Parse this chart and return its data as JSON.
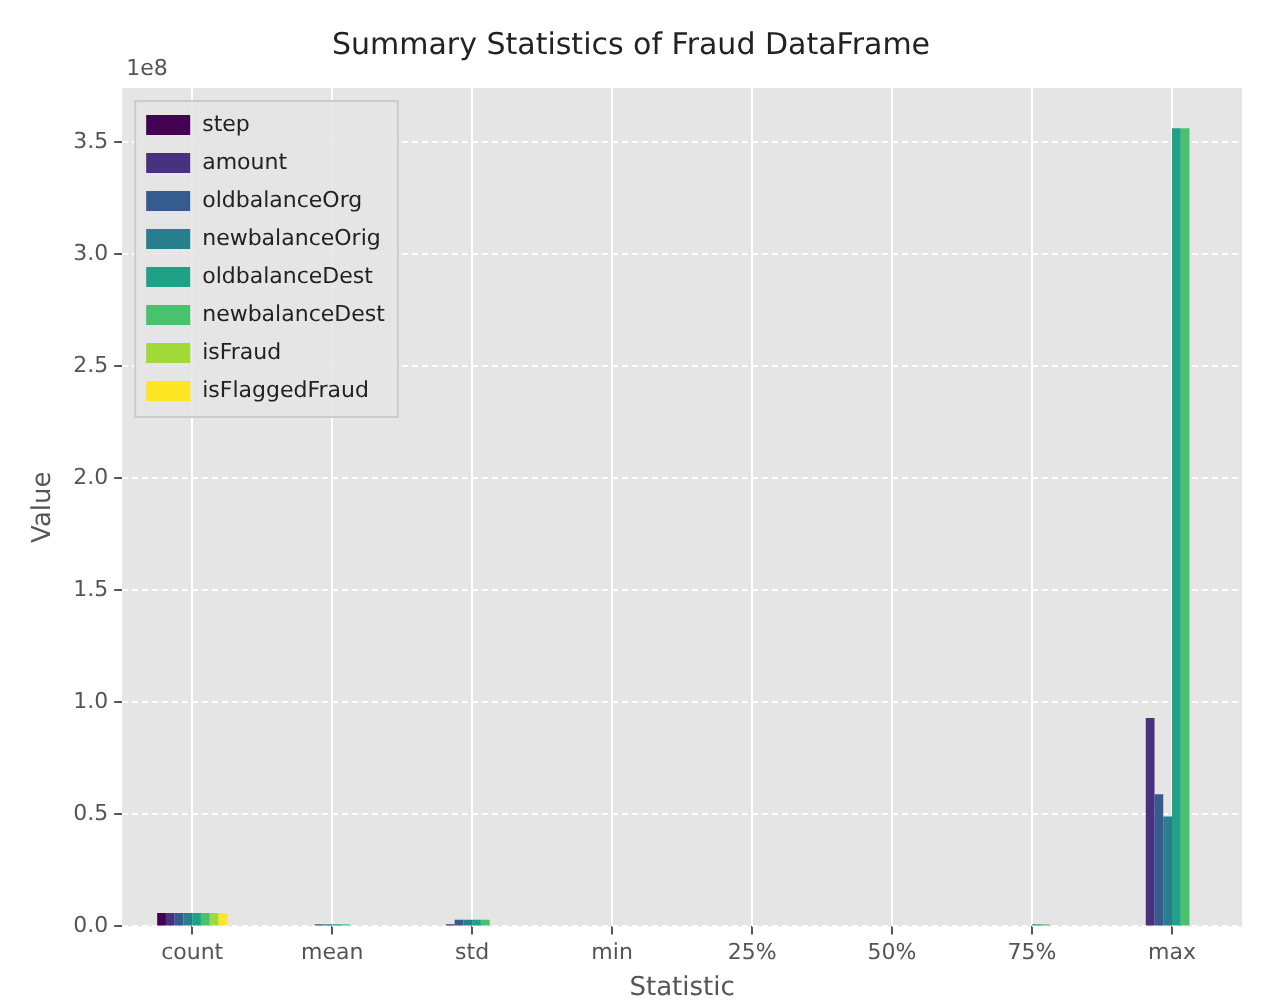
{
  "chart_data": {
    "type": "bar",
    "title": "Summary Statistics of Fraud DataFrame",
    "xlabel": "Statistic",
    "ylabel": "Value",
    "annotations": [
      "1e8"
    ],
    "categories": [
      "count",
      "mean",
      "std",
      "min",
      "25%",
      "50%",
      "75%",
      "max"
    ],
    "series": [
      {
        "name": "step",
        "color": "#440154",
        "values": [
          0.06,
          0,
          0,
          0,
          0,
          0,
          0,
          0
        ]
      },
      {
        "name": "amount",
        "color": "#46327e",
        "values": [
          0.06,
          0,
          0.01,
          0,
          0,
          0,
          0,
          0.93
        ]
      },
      {
        "name": "oldbalanceOrg",
        "color": "#365c8d",
        "values": [
          0.06,
          0.01,
          0.03,
          0,
          0,
          0,
          0,
          0.59
        ]
      },
      {
        "name": "newbalanceOrig",
        "color": "#277f8e",
        "values": [
          0.06,
          0.01,
          0.03,
          0,
          0,
          0,
          0,
          0.49
        ]
      },
      {
        "name": "oldbalanceDest",
        "color": "#1fa187",
        "values": [
          0.06,
          0.01,
          0.03,
          0,
          0,
          0,
          0.01,
          3.56
        ]
      },
      {
        "name": "newbalanceDest",
        "color": "#4ac16d",
        "values": [
          0.06,
          0.01,
          0.03,
          0,
          0,
          0,
          0.01,
          3.56
        ]
      },
      {
        "name": "isFraud",
        "color": "#a0da39",
        "values": [
          0.06,
          0,
          0,
          0,
          0,
          0,
          0,
          0
        ]
      },
      {
        "name": "isFlaggedFraud",
        "color": "#fde725",
        "values": [
          0.06,
          0,
          0,
          0,
          0,
          0,
          0,
          0
        ]
      }
    ],
    "ylim": [
      0,
      3.74
    ],
    "yticks": [
      {
        "value": 0,
        "label": "0.0"
      },
      0.5,
      {
        "value": 1,
        "label": "1.0"
      },
      1.5,
      {
        "value": 2,
        "label": "2.0"
      },
      2.5,
      {
        "value": 3,
        "label": "3.0"
      },
      3.5
    ],
    "grid": true,
    "legend": "top left"
  }
}
